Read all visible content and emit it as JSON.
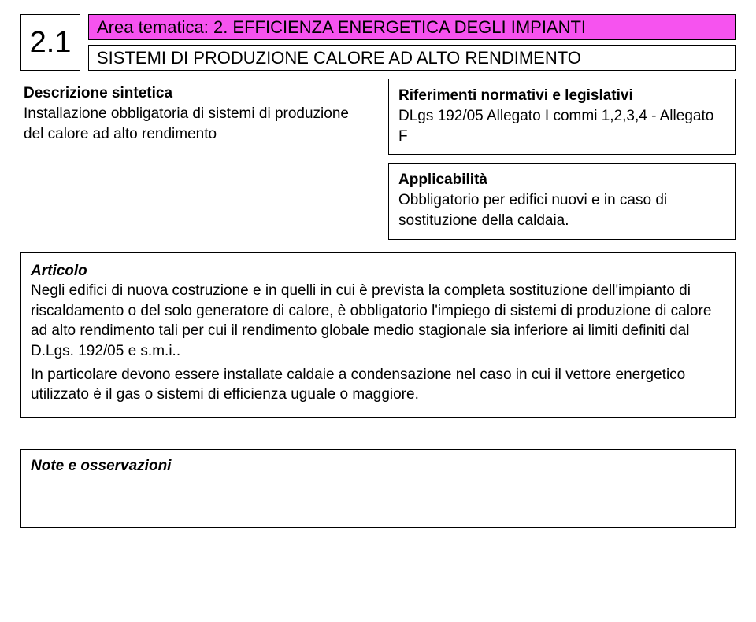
{
  "colors": {
    "magenta": "#f653ef",
    "black": "#000000",
    "white": "#ffffff"
  },
  "header": {
    "section_number": "2.1",
    "area_label": "Area tematica: ",
    "area_value": "2. EFFICIENZA ENERGETICA DEGLI IMPIANTI",
    "subtitle": "SISTEMI DI PRODUZIONE CALORE AD ALTO RENDIMENTO"
  },
  "left": {
    "title": "Descrizione sintetica",
    "text": "Installazione obbligatoria di sistemi di produzione del calore ad alto rendimento"
  },
  "right_top": {
    "title": "Riferimenti normativi e legislativi",
    "text": "DLgs 192/05 Allegato I commi 1,2,3,4 - Allegato F"
  },
  "right_bottom": {
    "title": "Applicabilità",
    "text": "Obbligatorio per edifici nuovi e in caso di sostituzione della caldaia."
  },
  "article": {
    "title": "Articolo",
    "para1": "Negli edifici di nuova costruzione e in quelli in cui è prevista la completa sostituzione dell'impianto di riscaldamento o del solo generatore di calore, è obbligatorio l'impiego di sistemi di produzione di calore ad alto rendimento tali per cui il rendimento globale medio stagionale sia inferiore ai limiti definiti dal D.Lgs. 192/05 e s.m.i..",
    "para2": "In particolare devono essere installate caldaie a condensazione nel caso in cui il vettore energetico utilizzato è il gas o sistemi di efficienza uguale o maggiore."
  },
  "notes": {
    "title": "Note e osservazioni"
  }
}
